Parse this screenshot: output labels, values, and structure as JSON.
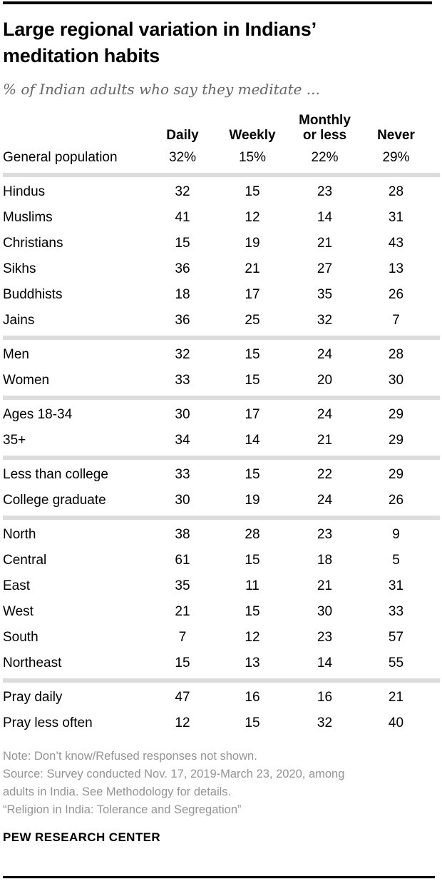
{
  "header": {
    "title_lines": [
      "Large regional variation in Indians’",
      "meditation habits"
    ],
    "subtitle": "% of Indian adults who say they meditate ..."
  },
  "chart_data": {
    "type": "table",
    "title": "Large regional variation in Indians’ meditation habits",
    "subtitle": "% of Indian adults who say they meditate ...",
    "columns": [
      "Daily",
      "Weekly",
      "Monthly\nor less",
      "Never"
    ],
    "groups": [
      {
        "name": "general",
        "rows": [
          {
            "label": "General population",
            "values": [
              "32%",
              "15%",
              "22%",
              "29%"
            ]
          }
        ]
      },
      {
        "name": "religion",
        "rows": [
          {
            "label": "Hindus",
            "values": [
              "32",
              "15",
              "23",
              "28"
            ]
          },
          {
            "label": "Muslims",
            "values": [
              "41",
              "12",
              "14",
              "31"
            ]
          },
          {
            "label": "Christians",
            "values": [
              "15",
              "19",
              "21",
              "43"
            ]
          },
          {
            "label": "Sikhs",
            "values": [
              "36",
              "21",
              "27",
              "13"
            ]
          },
          {
            "label": "Buddhists",
            "values": [
              "18",
              "17",
              "35",
              "26"
            ]
          },
          {
            "label": "Jains",
            "values": [
              "36",
              "25",
              "32",
              "7"
            ]
          }
        ]
      },
      {
        "name": "gender",
        "rows": [
          {
            "label": "Men",
            "values": [
              "32",
              "15",
              "24",
              "28"
            ]
          },
          {
            "label": "Women",
            "values": [
              "33",
              "15",
              "20",
              "30"
            ]
          }
        ]
      },
      {
        "name": "age",
        "rows": [
          {
            "label": "Ages 18-34",
            "values": [
              "30",
              "17",
              "24",
              "29"
            ]
          },
          {
            "label": "35+",
            "values": [
              "34",
              "14",
              "21",
              "29"
            ]
          }
        ]
      },
      {
        "name": "education",
        "rows": [
          {
            "label": "Less than college",
            "values": [
              "33",
              "15",
              "22",
              "29"
            ]
          },
          {
            "label": "College graduate",
            "values": [
              "30",
              "19",
              "24",
              "26"
            ]
          }
        ]
      },
      {
        "name": "region",
        "rows": [
          {
            "label": "North",
            "values": [
              "38",
              "28",
              "23",
              "9"
            ]
          },
          {
            "label": "Central",
            "values": [
              "61",
              "15",
              "18",
              "5"
            ]
          },
          {
            "label": "East",
            "values": [
              "35",
              "11",
              "21",
              "31"
            ]
          },
          {
            "label": "West",
            "values": [
              "21",
              "15",
              "30",
              "33"
            ]
          },
          {
            "label": "South",
            "values": [
              "7",
              "12",
              "23",
              "57"
            ]
          },
          {
            "label": "Northeast",
            "values": [
              "15",
              "13",
              "14",
              "55"
            ]
          }
        ]
      },
      {
        "name": "prayer",
        "rows": [
          {
            "label": "Pray daily",
            "values": [
              "47",
              "16",
              "16",
              "21"
            ]
          },
          {
            "label": "Pray less often",
            "values": [
              "12",
              "15",
              "32",
              "40"
            ]
          }
        ]
      }
    ]
  },
  "footer": {
    "note_lines": [
      "Note: Don’t know/Refused responses not shown.",
      "Source: Survey conducted Nov. 17, 2019-March 23, 2020, among",
      "adults in India. See Methodology for details.",
      "“Religion in India: Tolerance and Segregation”"
    ],
    "brand": "PEW RESEARCH CENTER"
  }
}
